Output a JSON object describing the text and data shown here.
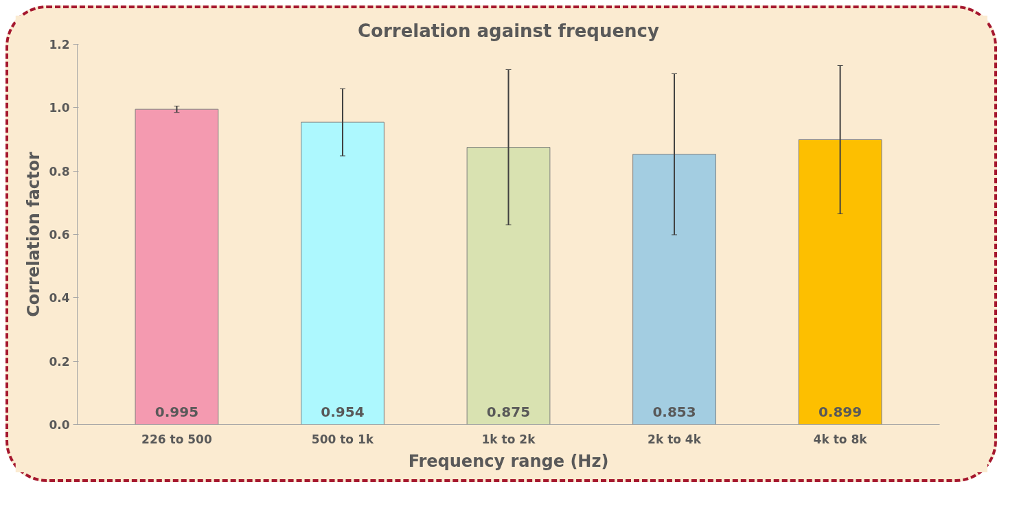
{
  "chart_data": {
    "type": "bar",
    "title": "Correlation against frequency",
    "xlabel": "Frequency range (Hz)",
    "ylabel": "Correlation factor",
    "categories": [
      "226 to 500",
      "500 to 1k",
      "1k to 2k",
      "2k to 4k",
      "4k to 8k"
    ],
    "values": [
      0.995,
      0.954,
      0.875,
      0.853,
      0.899
    ],
    "colors": [
      "#f49ab0",
      "#adf8fe",
      "#d9e2b1",
      "#a3cde1",
      "#fdbf00"
    ],
    "errors": [
      0.01,
      0.106,
      0.245,
      0.254,
      0.234
    ],
    "ylim": [
      0,
      1.2
    ],
    "yticks": [
      {
        "value": 0,
        "label": "0.0"
      },
      {
        "value": 0.2,
        "label": "0.2"
      },
      {
        "value": 0.4,
        "label": "0.4"
      },
      {
        "value": 0.6,
        "label": "0.6"
      },
      {
        "value": 0.8,
        "label": "0.8"
      },
      {
        "value": 1.0,
        "label": "1.0"
      },
      {
        "value": 1.2,
        "label": "1.2"
      }
    ],
    "grid": false,
    "data_labels": true
  }
}
